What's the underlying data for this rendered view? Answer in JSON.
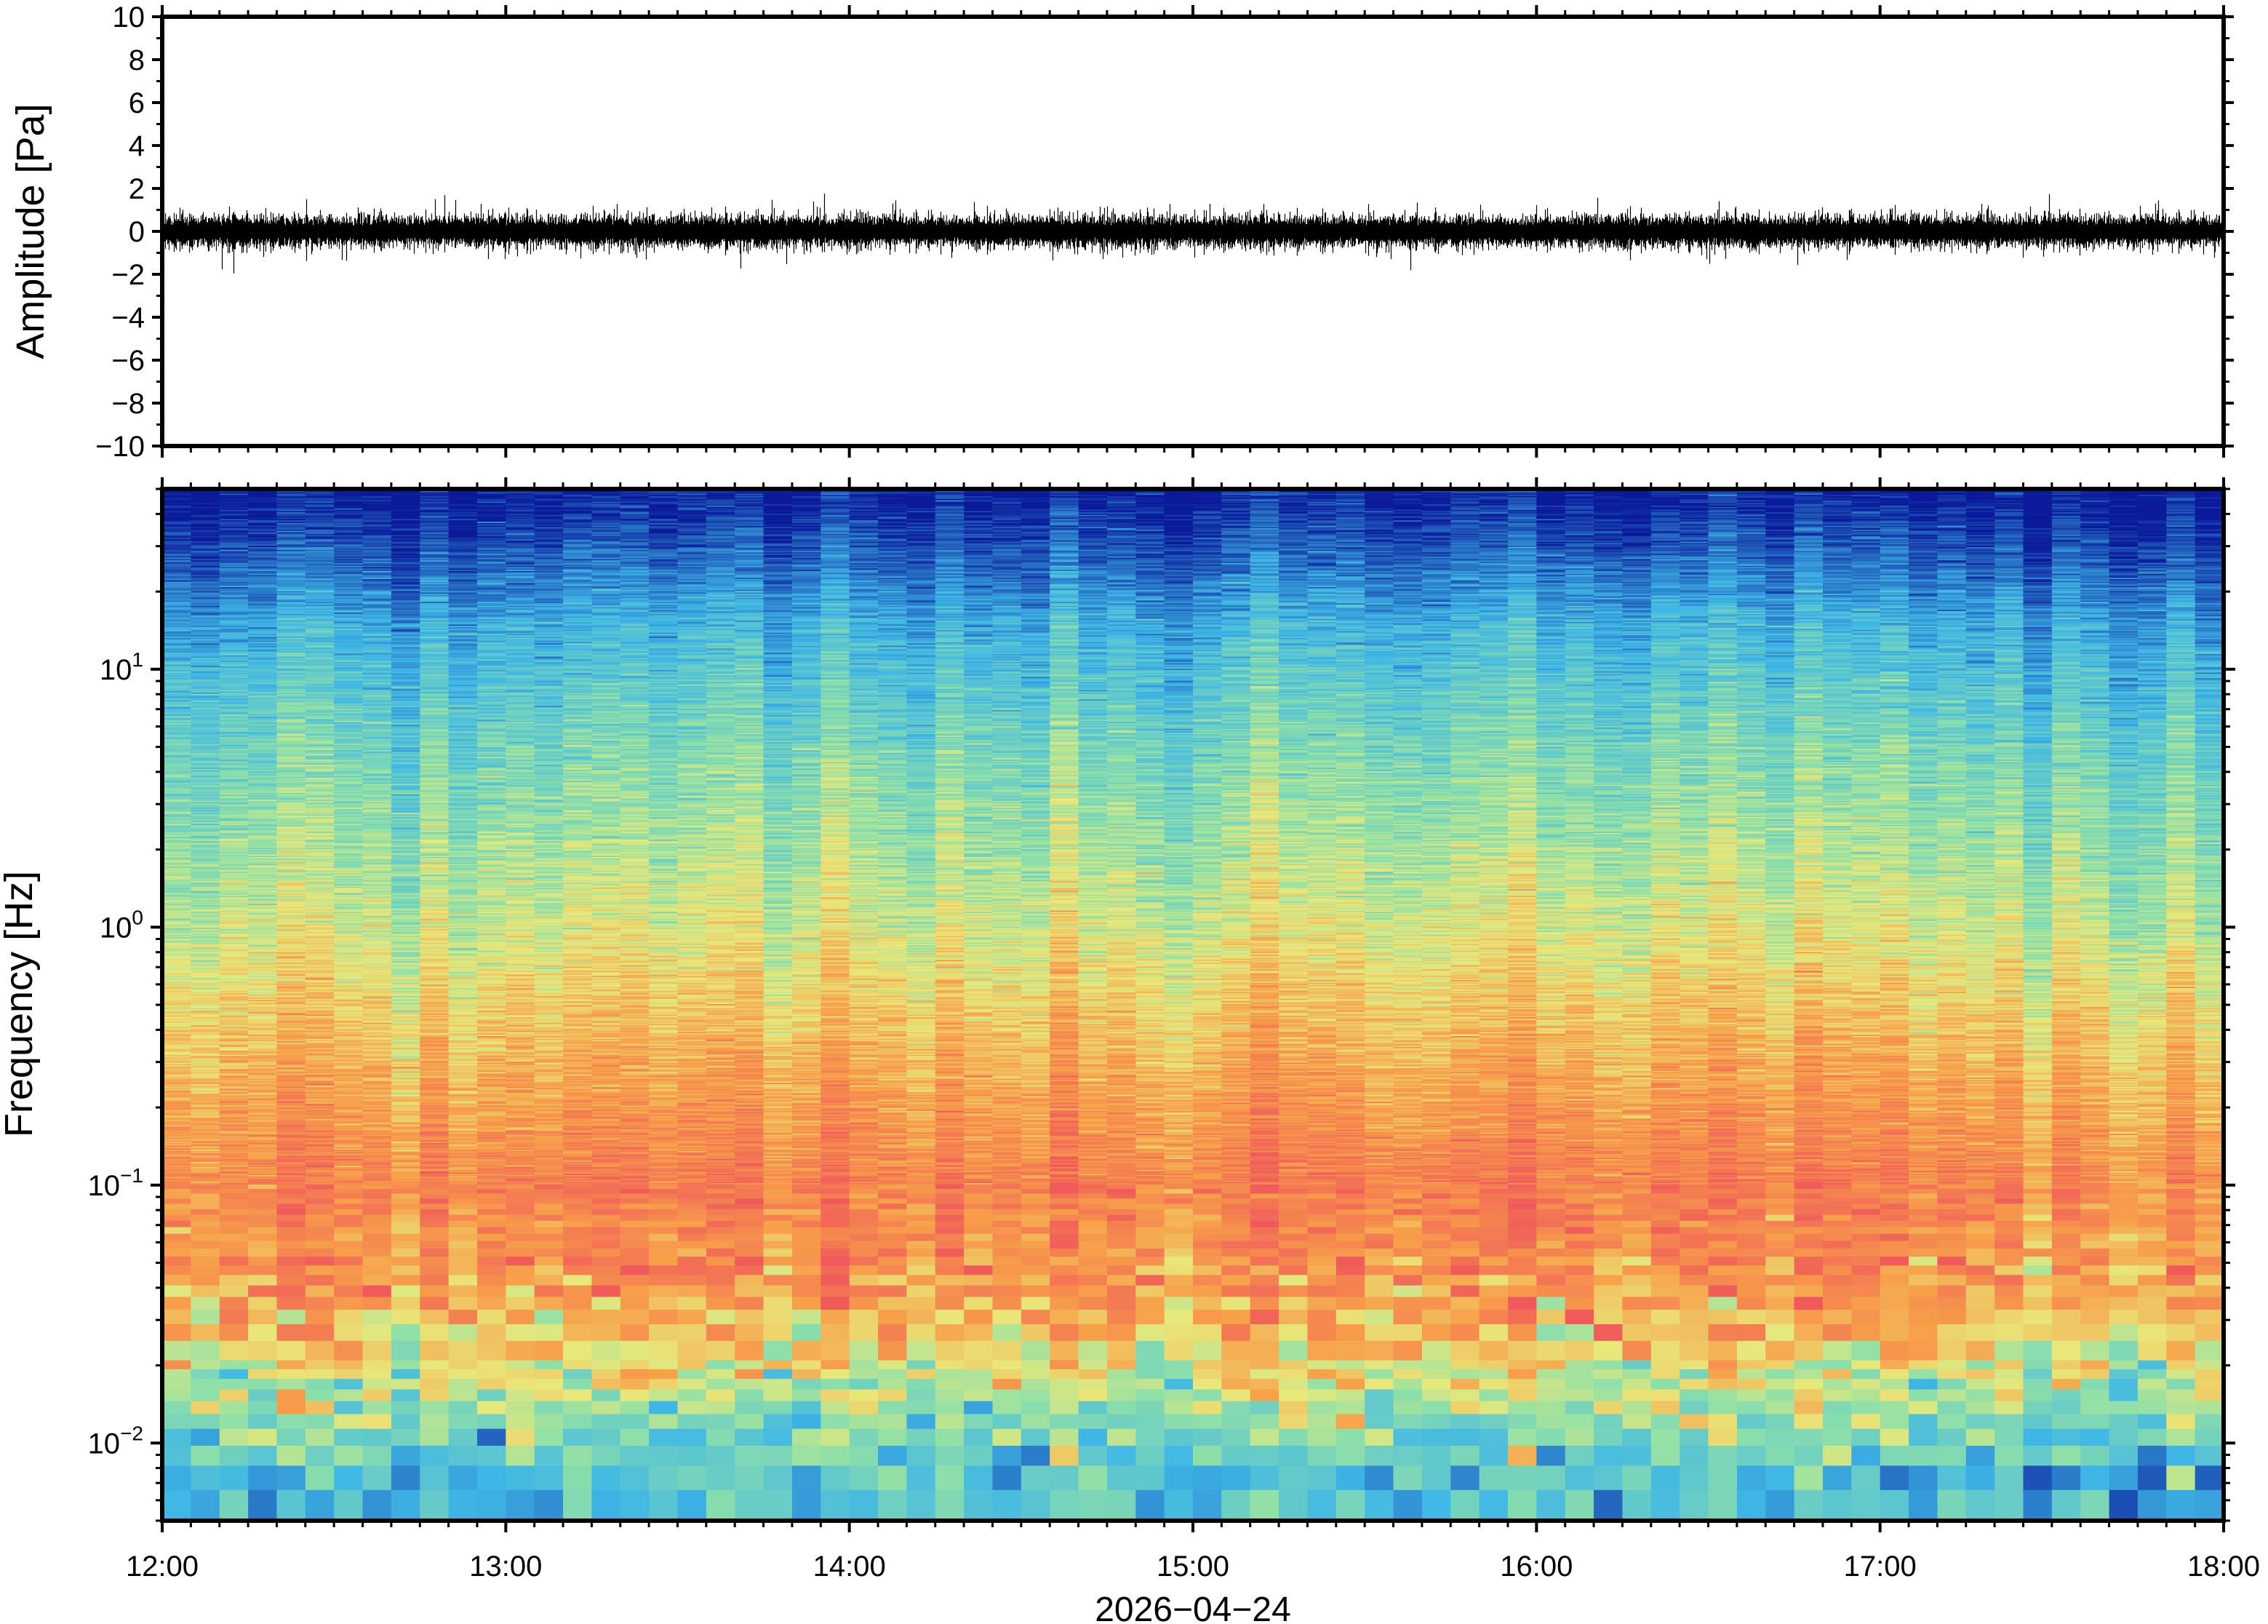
{
  "chart_data": [
    {
      "type": "line",
      "panel": "waveform",
      "ylabel": "Amplitude [Pa]",
      "ylim": [
        -10,
        10
      ],
      "yticks": [
        10,
        8,
        6,
        4,
        2,
        0,
        -2,
        -4,
        -6,
        -8,
        -10
      ],
      "ytick_labels": [
        "10",
        "8",
        "6",
        "4",
        "2",
        "0",
        "−2",
        "−4",
        "−6",
        "−8",
        "−10"
      ],
      "x_range": [
        "12:00",
        "18:00"
      ],
      "series": [
        {
          "values_summary": {
            "typical_envelope": [
              -1.2,
              1.2
            ],
            "max": 2.3,
            "min": -2.4
          }
        }
      ],
      "grid": false
    },
    {
      "type": "heatmap",
      "panel": "spectrogram",
      "ylabel": "Frequency [Hz]",
      "yscale": "log",
      "ylim": [
        0.005,
        50
      ],
      "yticks": [
        {
          "base": "10",
          "exp": "1"
        },
        {
          "base": "10",
          "exp": "0"
        },
        {
          "base": "10",
          "exp": "−1"
        },
        {
          "base": "10",
          "exp": "−2"
        }
      ],
      "xticks": [
        "12:00",
        "13:00",
        "14:00",
        "15:00",
        "16:00",
        "17:00",
        "18:00"
      ],
      "xlabel": "2026−04−24",
      "colormap": "spectral (red = high power, blue = low power)",
      "power_profile": [
        {
          "freq": 0.007,
          "level": 0.35
        },
        {
          "freq": 0.015,
          "level": 0.55
        },
        {
          "freq": 0.04,
          "level": 0.8
        },
        {
          "freq": 0.1,
          "level": 0.88
        },
        {
          "freq": 0.3,
          "level": 0.75
        },
        {
          "freq": 1,
          "level": 0.6
        },
        {
          "freq": 5,
          "level": 0.45
        },
        {
          "freq": 15,
          "level": 0.3
        },
        {
          "freq": 30,
          "level": 0.12
        },
        {
          "freq": 45,
          "level": 0.02
        }
      ],
      "colors": {
        "low": "#0a1a9a",
        "mid_low": "#3fb7e6",
        "mid": "#8fe0a8",
        "mid_high": "#e8e87a",
        "high": "#f7a04a",
        "peak": "#f05a5a"
      }
    }
  ]
}
